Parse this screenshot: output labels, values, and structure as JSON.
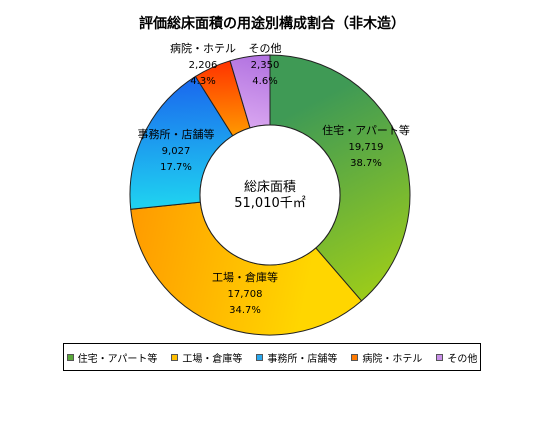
{
  "chart_data": {
    "type": "pie",
    "donut": true,
    "title": "評価総床面積の用途別構成割合（非木造）",
    "center_label": [
      "総床面積",
      "51,010千㎡"
    ],
    "series": [
      {
        "name": "住宅・アパート等",
        "value": 19719,
        "value_label": "19,719",
        "percent": 38.7,
        "percent_label": "38.7%",
        "color_start": "#3f9a55",
        "color_end": "#9ccc1a"
      },
      {
        "name": "工場・倉庫等",
        "value": 17708,
        "value_label": "17,708",
        "percent": 34.7,
        "percent_label": "34.7%",
        "color_start": "#ffd600",
        "color_end": "#ff9a00"
      },
      {
        "name": "事務所・店舗等",
        "value": 9027,
        "value_label": "9,027",
        "percent": 17.7,
        "percent_label": "17.7%",
        "color_start": "#1fd0f0",
        "color_end": "#1a66ee"
      },
      {
        "name": "病院・ホテル",
        "value": 2206,
        "value_label": "2,206",
        "percent": 4.3,
        "percent_label": "4.3%",
        "color_start": "#ff9900",
        "color_end": "#ff3300"
      },
      {
        "name": "その他",
        "value": 2350,
        "value_label": "2,350",
        "percent": 4.6,
        "percent_label": "4.6%",
        "color_start": "#d9a6f0",
        "color_end": "#b070e0"
      }
    ],
    "legend": {
      "position": "bottom",
      "items": [
        "住宅・アパート等",
        "工場・倉庫等",
        "事務所・店舗等",
        "病院・ホテル",
        "その他"
      ],
      "colors": [
        "#5aa83a",
        "#ffbf00",
        "#2aa8ee",
        "#ff7a00",
        "#c890e8"
      ]
    }
  }
}
